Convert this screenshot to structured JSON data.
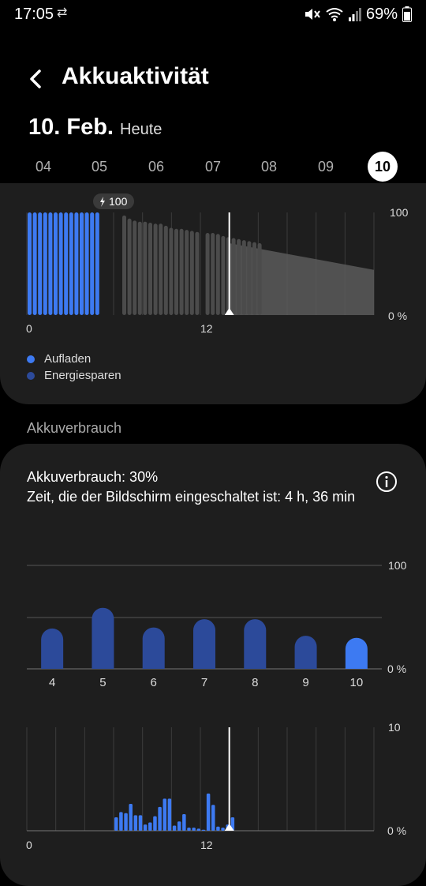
{
  "status_bar": {
    "time": "17:05",
    "battery_percent": "69%"
  },
  "header": {
    "title": "Akkuaktivität"
  },
  "date": {
    "main": "10. Feb.",
    "sub": "Heute"
  },
  "days": [
    {
      "label": "04",
      "selected": false
    },
    {
      "label": "05",
      "selected": false
    },
    {
      "label": "06",
      "selected": false
    },
    {
      "label": "07",
      "selected": false
    },
    {
      "label": "08",
      "selected": false
    },
    {
      "label": "09",
      "selected": false
    },
    {
      "label": "10",
      "selected": true
    }
  ],
  "battery_chart": {
    "charge_badge": "100",
    "y_top": "100",
    "y_bottom": "0 %",
    "x_labels": [
      "0",
      "12"
    ],
    "x_range": [
      0,
      24
    ],
    "y_range": [
      0,
      100
    ],
    "now_hour": 14.0,
    "charging_levels": [
      100,
      100,
      100,
      100,
      100,
      100,
      100,
      100,
      100,
      100,
      100,
      100,
      100,
      100
    ],
    "discharge_levels": [
      97,
      94,
      92,
      91,
      91,
      90,
      89,
      89,
      87,
      85,
      84,
      84,
      83,
      82,
      81,
      null,
      80,
      80,
      79,
      77,
      76,
      75,
      74,
      73,
      72,
      71,
      70
    ],
    "prediction": {
      "start": 70,
      "end": 44
    }
  },
  "legend": [
    {
      "label": "Aufladen",
      "color": "#3d7af2"
    },
    {
      "label": "Energiesparen",
      "color": "#2c4a9a"
    }
  ],
  "section_label": "Akkuverbrauch",
  "usage": {
    "consumption_text": "Akkuverbrauch: 30%",
    "screen_time_text": "Zeit, die der Bildschirm eingeschaltet ist: 4 h, 36 min"
  },
  "chart_data": [
    {
      "type": "bar",
      "categories": [
        "4",
        "5",
        "6",
        "7",
        "8",
        "9",
        "10"
      ],
      "values": [
        39,
        59,
        40,
        48,
        48,
        32,
        30
      ],
      "ylim": [
        0,
        100
      ],
      "y_top_label": "100",
      "y_bottom_label": "0 %",
      "colors": {
        "past": "#2c4a9a",
        "current": "#3d7af2"
      }
    },
    {
      "type": "bar",
      "x_labels": [
        "0",
        "12"
      ],
      "x_range": [
        0,
        24
      ],
      "ylim": [
        0,
        10
      ],
      "y_top_label": "10",
      "y_bottom_label": "0 %",
      "now_hour": 14.0,
      "values": [
        1.3,
        1.8,
        1.7,
        2.6,
        1.5,
        1.5,
        0.6,
        0.8,
        1.4,
        2.3,
        3.1,
        3.1,
        0.5,
        0.9,
        1.6,
        0.3,
        0.3,
        0.2,
        0.1,
        3.6,
        2.5,
        0.4,
        0.3,
        0.6,
        1.3
      ]
    }
  ]
}
